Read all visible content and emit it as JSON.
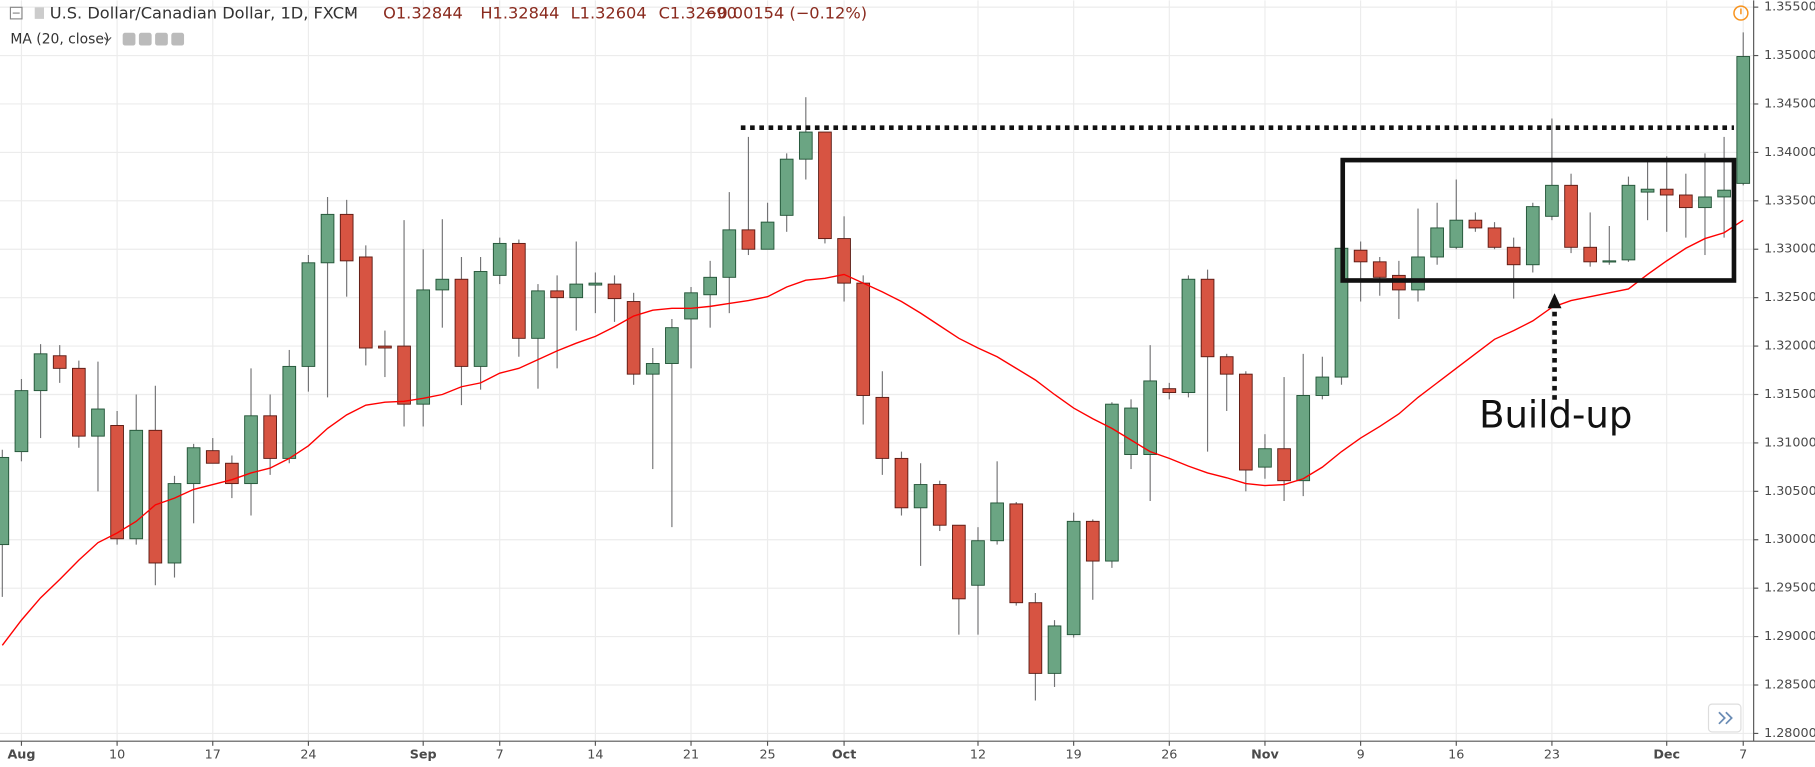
{
  "chart_data": {
    "type": "candlestick",
    "title": "U.S. Dollar/Canadian Dollar, 1D, FXCM",
    "ohlc_labels": [
      "O1.32844",
      "H1.32844",
      "L1.32604",
      "C1.32690",
      "−0.00154 (−0.12%)"
    ],
    "annotations": [
      "Build-up"
    ],
    "up_color": "#6ba583",
    "down_color": "#d75442",
    "grid": true,
    "categories": [
      null,
      "Aug",
      null,
      null,
      null,
      null,
      "10",
      null,
      null,
      null,
      null,
      "17",
      null,
      null,
      null,
      null,
      "24",
      null,
      null,
      null,
      null,
      null,
      "Sep",
      null,
      null,
      null,
      "7",
      null,
      null,
      null,
      null,
      "14",
      null,
      null,
      null,
      null,
      "21",
      null,
      null,
      null,
      "25",
      null,
      null,
      null,
      "Oct",
      null,
      null,
      null,
      null,
      null,
      null,
      "12",
      null,
      null,
      null,
      null,
      "19",
      null,
      null,
      null,
      null,
      "26",
      null,
      null,
      null,
      null,
      "Nov",
      null,
      null,
      null,
      null,
      "9",
      null,
      null,
      null,
      null,
      "16",
      null,
      null,
      null,
      null,
      "23",
      null,
      null,
      null,
      null,
      null,
      "Dec",
      null,
      null,
      null,
      "7"
    ],
    "open": [
      1.2995,
      1.3091,
      1.3154,
      1.319,
      1.3177,
      1.3107,
      1.3118,
      1.3001,
      1.3113,
      1.2976,
      1.3058,
      1.3092,
      1.3079,
      1.3058,
      1.3128,
      1.3084,
      1.3179,
      1.3286,
      1.3336,
      1.3292,
      1.32,
      1.32,
      1.314,
      1.3258,
      1.3269,
      1.3179,
      1.3273,
      1.3306,
      1.3208,
      1.3257,
      1.325,
      1.3263,
      1.3264,
      1.3246,
      1.3171,
      1.3182,
      1.3228,
      1.3253,
      1.3271,
      1.332,
      1.33,
      1.3335,
      1.3393,
      1.3421,
      1.3311,
      1.3265,
      1.3147,
      1.3084,
      1.3033,
      1.3057,
      1.3015,
      1.2953,
      1.2999,
      1.3037,
      1.2935,
      1.2862,
      1.2902,
      1.3019,
      1.2978,
      1.3088,
      1.3088,
      1.3156,
      1.3152,
      1.3269,
      1.3189,
      1.3171,
      1.3075,
      1.3094,
      1.3061,
      1.3149,
      1.3168,
      1.3299,
      1.3287,
      1.3273,
      1.3258,
      1.3292,
      1.3302,
      1.333,
      1.3322,
      1.3302,
      1.3284,
      1.3334,
      1.3366,
      1.3302,
      1.3287,
      1.3289,
      1.3359,
      1.3362,
      1.3356,
      1.3343,
      1.3354,
      1.3368
    ],
    "high": [
      1.3093,
      1.3166,
      1.3202,
      1.3201,
      1.3185,
      1.3184,
      1.3133,
      1.315,
      1.3159,
      1.3066,
      1.3099,
      1.3105,
      1.3087,
      1.3177,
      1.315,
      1.3196,
      1.3294,
      1.3354,
      1.3351,
      1.3304,
      1.3216,
      1.333,
      1.33,
      1.3331,
      1.3292,
      1.3292,
      1.3312,
      1.331,
      1.3264,
      1.3273,
      1.3308,
      1.3276,
      1.3273,
      1.3255,
      1.3198,
      1.3228,
      1.3261,
      1.3288,
      1.3359,
      1.3416,
      1.3348,
      1.3399,
      1.3457,
      1.3421,
      1.3334,
      1.3273,
      1.3174,
      1.3091,
      1.3079,
      1.3061,
      1.3015,
      1.3013,
      1.3081,
      1.3039,
      1.2945,
      1.2917,
      1.3028,
      1.3021,
      1.3142,
      1.3145,
      1.3201,
      1.3162,
      1.3273,
      1.3279,
      1.3192,
      1.3174,
      1.3109,
      1.3168,
      1.3192,
      1.3189,
      1.3308,
      1.3308,
      1.3292,
      1.3288,
      1.3342,
      1.3348,
      1.3372,
      1.3338,
      1.3328,
      1.3312,
      1.3348,
      1.3435,
      1.3378,
      1.3338,
      1.3324,
      1.3375,
      1.339,
      1.3396,
      1.3378,
      1.3399,
      1.3416,
      1.3524
    ],
    "low": [
      1.2941,
      1.3081,
      1.3105,
      1.3162,
      1.3095,
      1.305,
      1.2995,
      1.2995,
      1.2953,
      1.2961,
      1.3017,
      1.3079,
      1.3043,
      1.3025,
      1.3067,
      1.3079,
      1.3153,
      1.3147,
      1.3251,
      1.318,
      1.3168,
      1.3117,
      1.3117,
      1.3219,
      1.3139,
      1.3155,
      1.3264,
      1.3189,
      1.3156,
      1.3177,
      1.3216,
      1.3234,
      1.3225,
      1.316,
      1.3073,
      1.3013,
      1.3177,
      1.3219,
      1.3234,
      1.3294,
      1.33,
      1.3318,
      1.3372,
      1.3306,
      1.3246,
      1.3119,
      1.3067,
      1.3025,
      1.2973,
      1.3009,
      1.2902,
      1.2902,
      1.2995,
      1.2932,
      1.2834,
      1.2848,
      1.2899,
      1.2938,
      1.2971,
      1.3073,
      1.304,
      1.3145,
      1.3147,
      1.3091,
      1.3133,
      1.305,
      1.3063,
      1.304,
      1.3045,
      1.3145,
      1.316,
      1.3246,
      1.3252,
      1.3228,
      1.3246,
      1.3284,
      1.33,
      1.3318,
      1.33,
      1.3249,
      1.3276,
      1.333,
      1.3296,
      1.3282,
      1.3284,
      1.3287,
      1.333,
      1.3318,
      1.3312,
      1.3294,
      1.3312,
      1.3366
    ],
    "close": [
      1.3085,
      1.3154,
      1.3192,
      1.3177,
      1.3107,
      1.3135,
      1.3001,
      1.3113,
      1.2976,
      1.3058,
      1.3095,
      1.3079,
      1.3058,
      1.3128,
      1.3084,
      1.3179,
      1.3286,
      1.3336,
      1.3288,
      1.3198,
      1.3198,
      1.314,
      1.3258,
      1.3269,
      1.3179,
      1.3277,
      1.3306,
      1.3208,
      1.3257,
      1.325,
      1.3264,
      1.3265,
      1.3249,
      1.3171,
      1.3182,
      1.3219,
      1.3255,
      1.3271,
      1.332,
      1.33,
      1.3328,
      1.3393,
      1.3421,
      1.3311,
      1.3265,
      1.3149,
      1.3084,
      1.3033,
      1.3057,
      1.3015,
      1.2939,
      1.2999,
      1.3038,
      1.2935,
      1.2862,
      1.2911,
      1.3019,
      1.2978,
      1.314,
      1.3136,
      1.3164,
      1.3152,
      1.3269,
      1.3189,
      1.3171,
      1.3072,
      1.3094,
      1.3061,
      1.3149,
      1.3168,
      1.3301,
      1.3287,
      1.3271,
      1.3258,
      1.3292,
      1.3322,
      1.333,
      1.3322,
      1.3302,
      1.3284,
      1.3344,
      1.3366,
      1.3302,
      1.3287,
      1.3288,
      1.3366,
      1.3362,
      1.3356,
      1.3343,
      1.3354,
      1.3361,
      1.3499
    ],
    "ma": {
      "name": "MA (20, close)",
      "color": "#ff0000",
      "values": [
        1.2891,
        1.2917,
        1.294,
        1.2959,
        1.2979,
        1.2997,
        1.3007,
        1.3019,
        1.3036,
        1.3043,
        1.3052,
        1.3057,
        1.3062,
        1.3069,
        1.3074,
        1.3084,
        1.3097,
        1.3115,
        1.3129,
        1.3139,
        1.3142,
        1.3143,
        1.3146,
        1.315,
        1.3158,
        1.3162,
        1.3172,
        1.3177,
        1.3186,
        1.3195,
        1.3203,
        1.321,
        1.322,
        1.3231,
        1.3237,
        1.3239,
        1.3239,
        1.3241,
        1.3244,
        1.3247,
        1.3251,
        1.3261,
        1.3268,
        1.327,
        1.3274,
        1.3265,
        1.3256,
        1.3246,
        1.3234,
        1.3221,
        1.3208,
        1.3198,
        1.3189,
        1.3177,
        1.3165,
        1.315,
        1.3136,
        1.3125,
        1.3115,
        1.3103,
        1.3091,
        1.3084,
        1.3076,
        1.3069,
        1.3064,
        1.3058,
        1.3056,
        1.3057,
        1.3063,
        1.3075,
        1.3091,
        1.3105,
        1.3117,
        1.313,
        1.3147,
        1.3162,
        1.3177,
        1.3192,
        1.3207,
        1.3216,
        1.3226,
        1.324,
        1.3247,
        1.3251,
        1.3255,
        1.3259,
        1.3274,
        1.3288,
        1.3301,
        1.3311,
        1.3317,
        1.333
      ]
    },
    "ylim": [
      1.2792,
      1.3557
    ],
    "yticks": [
      {
        "value": 1.28,
        "label": "1.28000"
      },
      {
        "value": 1.285,
        "label": "1.28500"
      },
      {
        "value": 1.29,
        "label": "1.29000"
      },
      {
        "value": 1.295,
        "label": "1.29500"
      },
      {
        "value": 1.3,
        "label": "1.30000"
      },
      {
        "value": 1.305,
        "label": "1.30500"
      },
      {
        "value": 1.31,
        "label": "1.31000"
      },
      {
        "value": 1.315,
        "label": "1.31500"
      },
      {
        "value": 1.32,
        "label": "1.32000"
      },
      {
        "value": 1.325,
        "label": "1.32500"
      },
      {
        "value": 1.33,
        "label": "1.33000"
      },
      {
        "value": 1.335,
        "label": "1.33500"
      },
      {
        "value": 1.34,
        "label": "1.34000"
      },
      {
        "value": 1.345,
        "label": "1.34500"
      },
      {
        "value": 1.35,
        "label": "1.35000"
      },
      {
        "value": 1.355,
        "label": "1.35500"
      }
    ]
  }
}
